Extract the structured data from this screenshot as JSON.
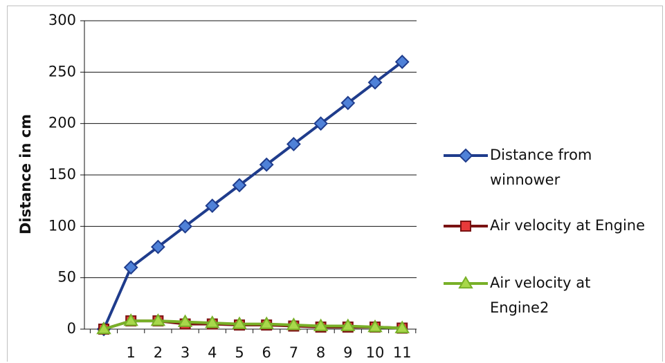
{
  "chart_data": {
    "type": "line",
    "title": "",
    "xlabel": "",
    "ylabel": "Distance in cm",
    "x": [
      0,
      1,
      2,
      3,
      4,
      5,
      6,
      7,
      8,
      9,
      10,
      11
    ],
    "x_tick_labels": [
      "1",
      "2",
      "3",
      "4",
      "5",
      "6",
      "7",
      "8",
      "9",
      "10",
      "11"
    ],
    "ylim": [
      0,
      300
    ],
    "y_ticks": [
      0,
      50,
      100,
      150,
      200,
      250,
      300
    ],
    "grid": "horizontal",
    "legend_position": "right",
    "series": [
      {
        "name_lines": [
          "Distance from",
          "winnower"
        ],
        "color": "#1f3c8c",
        "marker_fill": "#4f81d8",
        "marker": "diamond",
        "values": [
          0,
          60,
          80,
          100,
          120,
          140,
          160,
          180,
          200,
          220,
          240,
          260
        ]
      },
      {
        "name_lines": [
          "Air velocity at Engine"
        ],
        "color": "#7a1212",
        "marker_fill": "#e83a3a",
        "marker": "square",
        "values": [
          0,
          8,
          8,
          5,
          5,
          4,
          4,
          3,
          2,
          2,
          2,
          1
        ]
      },
      {
        "name_lines": [
          "Air velocity at",
          "Engine2"
        ],
        "color": "#78b028",
        "marker_fill": "#a8d84a",
        "marker": "triangle",
        "values": [
          0,
          8,
          8,
          7,
          6,
          5,
          5,
          4,
          3,
          3,
          2,
          1
        ]
      }
    ]
  }
}
